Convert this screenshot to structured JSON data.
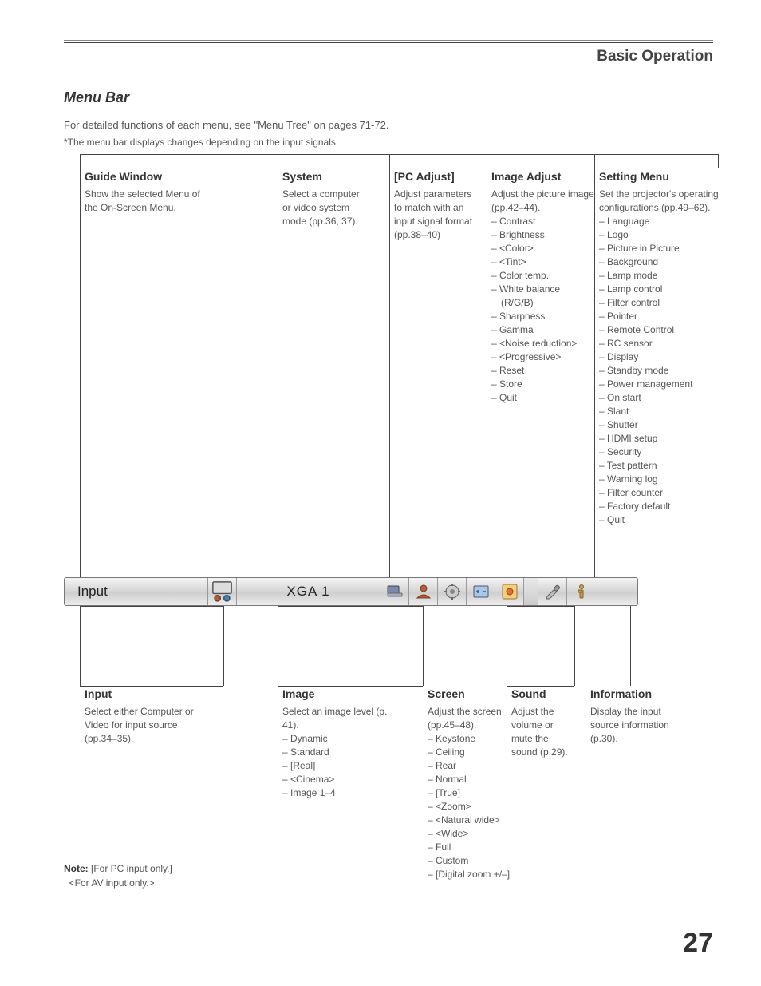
{
  "header": {
    "title": "Basic Operation"
  },
  "section": {
    "title": "Menu Bar"
  },
  "intro": "For detailed functions of each menu, see \"Menu Tree\" on pages 71-72.",
  "footnote_top": "*The menu bar displays changes depending on the input signals.",
  "top": {
    "guide": {
      "title": "Guide Window",
      "body": "Show the selected Menu of the On-Screen Menu."
    },
    "system": {
      "title": "System",
      "body": "Select a computer or video system mode (pp.36, 37)."
    },
    "pcadjust": {
      "title": "[PC Adjust]",
      "body": "Adjust parameters to match with an input signal format (pp.38–40)"
    },
    "imageadjust": {
      "title": "Image Adjust",
      "lead": "Adjust the picture image (pp.42–44).",
      "items": [
        "– Contrast",
        "– Brightness",
        "– <Color>",
        "– <Tint>",
        "– Color temp.",
        "– White balance",
        "   (R/G/B)",
        "– Sharpness",
        "– Gamma",
        "– <Noise reduction>",
        "– <Progressive>",
        "– Reset",
        "– Store",
        "– Quit"
      ]
    },
    "setting": {
      "title": "Setting Menu",
      "lead": "Set the projector's operating configurations (pp.49–62).",
      "items": [
        "– Language",
        "– Logo",
        "– Picture in Picture",
        "– Background",
        "– Lamp mode",
        "– Lamp control",
        "– Filter control",
        "– Pointer",
        "– Remote Control",
        "– RC sensor",
        "– Display",
        "– Standby mode",
        "– Power management",
        "– On start",
        "– Slant",
        "– Shutter",
        "– HDMI setup",
        "– Security",
        "– Test pattern",
        "– Warning log",
        "– Filter counter",
        "– Factory default",
        "– Quit"
      ]
    }
  },
  "menubar": {
    "input_label": "Input",
    "system_label": "XGA 1"
  },
  "bottom": {
    "input": {
      "title": "Input",
      "body": "Select either Computer or Video for input source (pp.34–35)."
    },
    "image": {
      "title": "Image",
      "lead": "Select an image level (p. 41).",
      "items": [
        "– Dynamic",
        "– Standard",
        "– [Real]",
        "– <Cinema>",
        "– Image 1–4"
      ]
    },
    "screen": {
      "title": "Screen",
      "lead": "Adjust the screen (pp.45–48).",
      "items": [
        "– Keystone",
        "– Ceiling",
        "– Rear",
        "– Normal",
        "– [True]",
        "– <Zoom>",
        "– <Natural wide>",
        "– <Wide>",
        "– Full",
        "– Custom",
        "– [Digital zoom +/–]"
      ]
    },
    "sound": {
      "title": "Sound",
      "body": "Adjust the volume or mute the sound (p.29)."
    },
    "info": {
      "title": "Information",
      "body": "Display the input source information (p.30)."
    }
  },
  "note": {
    "label": "Note:",
    "l1": " [For PC input only.]",
    "l2": "<For AV input only.>"
  },
  "page": "27",
  "icons": {
    "laptop_fill": "#7a8aa8",
    "person_fill": "#b95c3a",
    "gear_fill": "#888",
    "screen_fill": "#a8c8e8",
    "sound_dot": "#e07030",
    "wrench_fill": "#999",
    "info_fill": "#c8a050"
  }
}
